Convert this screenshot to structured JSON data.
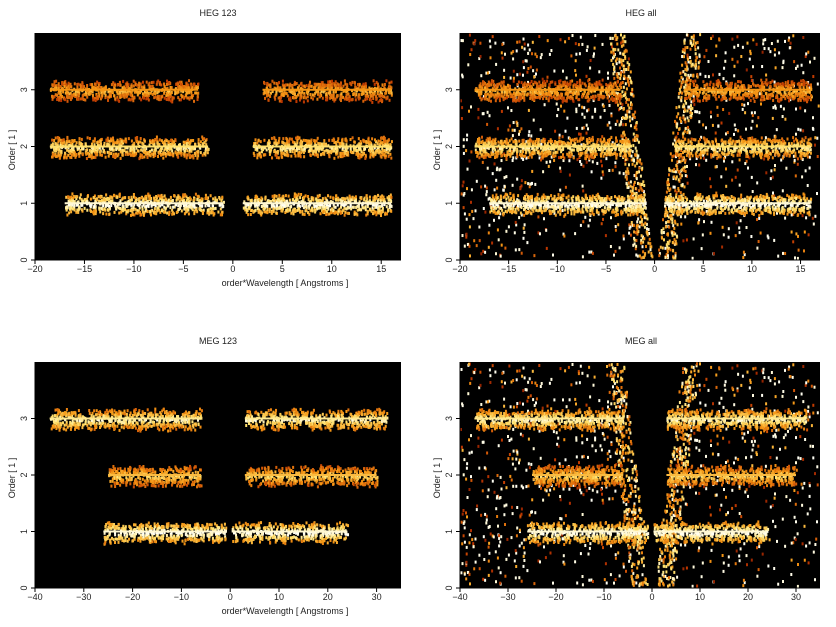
{
  "chart_data": [
    {
      "type": "heatmap",
      "title": "HEG 123",
      "xlabel": "order*Wavelength [ Angstroms ]",
      "ylabel": "Order [ 1 ]",
      "xlim": [
        -20,
        17
      ],
      "ylim": [
        0,
        4
      ],
      "xticks": [
        -20,
        -15,
        -10,
        -5,
        0,
        5,
        10,
        15
      ],
      "yticks": [
        0,
        1,
        2,
        3
      ],
      "bands": [
        {
          "order": 1,
          "x_min": -17,
          "x_max": 16,
          "gap": [
            -1,
            1
          ],
          "intensity": 0.95
        },
        {
          "order": 2,
          "x_min": -18.5,
          "x_max": 16,
          "gap": [
            -2.5,
            2
          ],
          "intensity": 0.8
        },
        {
          "order": 3,
          "x_min": -18.5,
          "x_max": 16,
          "gap": [
            -3.5,
            3
          ],
          "intensity": 0.6
        }
      ],
      "background": false
    },
    {
      "type": "heatmap",
      "title": "HEG all",
      "xlabel": "order*Wavelength [ Angstroms ]",
      "ylabel": "Order [ 1 ]",
      "xlim": [
        -20,
        17
      ],
      "ylim": [
        0,
        4
      ],
      "xticks": [
        -20,
        -15,
        -10,
        -5,
        0,
        5,
        10,
        15
      ],
      "yticks": [
        0,
        1,
        2,
        3
      ],
      "bands": [
        {
          "order": 1,
          "x_min": -17,
          "x_max": 16,
          "gap": [
            -1,
            1
          ],
          "intensity": 0.95
        },
        {
          "order": 2,
          "x_min": -18.5,
          "x_max": 16,
          "gap": [
            -2.5,
            2
          ],
          "intensity": 0.8
        },
        {
          "order": 3,
          "x_min": -18.5,
          "x_max": 16,
          "gap": [
            -3.5,
            3
          ],
          "intensity": 0.6
        }
      ],
      "background": true
    },
    {
      "type": "heatmap",
      "title": "MEG 123",
      "xlabel": "order*Wavelength [ Angstroms ]",
      "ylabel": "Order [ 1 ]",
      "xlim": [
        -40,
        35
      ],
      "ylim": [
        0,
        4
      ],
      "xticks": [
        -40,
        -30,
        -20,
        -10,
        0,
        10,
        20,
        30
      ],
      "yticks": [
        0,
        1,
        2,
        3
      ],
      "bands": [
        {
          "order": 1,
          "x_min": -26,
          "x_max": 24,
          "gap": [
            -1,
            0.3
          ],
          "intensity": 0.95
        },
        {
          "order": 2,
          "x_min": -25,
          "x_max": 30,
          "gap": [
            -6,
            3
          ],
          "intensity": 0.7
        },
        {
          "order": 3,
          "x_min": -37,
          "x_max": 32,
          "gap": [
            -6,
            3
          ],
          "intensity": 0.85
        }
      ],
      "background": false
    },
    {
      "type": "heatmap",
      "title": "MEG all",
      "xlabel": "order*Wavelength [ Angstroms ]",
      "ylabel": "Order [ 1 ]",
      "xlim": [
        -40,
        35
      ],
      "ylim": [
        0,
        4
      ],
      "xticks": [
        -40,
        -30,
        -20,
        -10,
        0,
        10,
        20,
        30
      ],
      "yticks": [
        0,
        1,
        2,
        3
      ],
      "bands": [
        {
          "order": 1,
          "x_min": -26,
          "x_max": 24,
          "gap": [
            -1,
            0.3
          ],
          "intensity": 0.95
        },
        {
          "order": 2,
          "x_min": -25,
          "x_max": 30,
          "gap": [
            -6,
            3
          ],
          "intensity": 0.7
        },
        {
          "order": 3,
          "x_min": -37,
          "x_max": 32,
          "gap": [
            -6,
            3
          ],
          "intensity": 0.85
        }
      ],
      "background": true
    }
  ]
}
